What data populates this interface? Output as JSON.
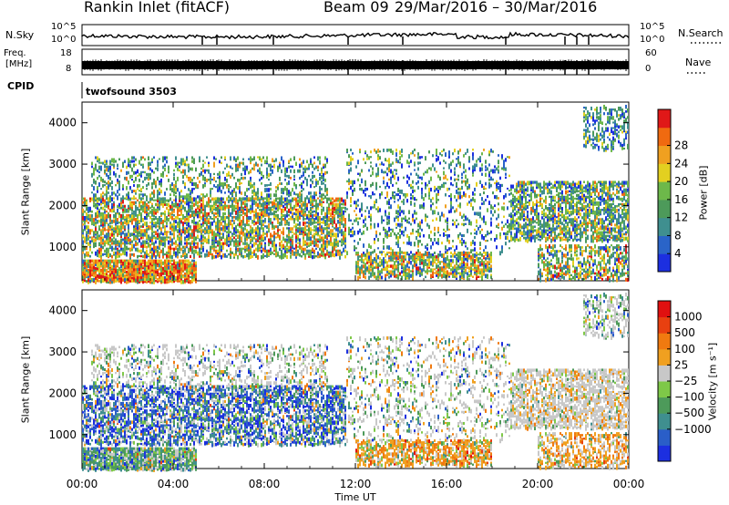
{
  "header": {
    "station": "Rankin Inlet (fitACF)",
    "beam": "Beam 09",
    "date_range": "29/Mar/2016 – 30/Mar/2016"
  },
  "strips": {
    "noise": {
      "left_label": "N.Sky",
      "right_label": "N.Search",
      "left_top_tick": "10^5",
      "left_bottom_tick": "10^0",
      "right_top_tick": "10^5",
      "right_bottom_tick": "10^0"
    },
    "freq": {
      "left_label_top": "Freq.",
      "left_label_bottom": "[MHz]",
      "right_label": "Nave",
      "left_top_tick": "18",
      "left_bottom_tick": "8",
      "right_top_tick": "60",
      "right_bottom_tick": "0"
    },
    "cpid": {
      "left_label": "CPID",
      "program": "twofsound 3503"
    }
  },
  "chart_data": [
    {
      "type": "heatmap",
      "panel": "power",
      "xlabel": "",
      "ylabel": "Slant Range [km]",
      "ylim": [
        180,
        4500
      ],
      "yticks": [
        "1000",
        "2000",
        "3000",
        "4000"
      ],
      "colorbar": {
        "label": "Power [dB]",
        "ticks": [
          "4",
          "8",
          "12",
          "16",
          "20",
          "24",
          "28"
        ],
        "colors": [
          "#1c2fe0",
          "#2a64c8",
          "#3f8f8f",
          "#4d9a5a",
          "#6db84a",
          "#e3d020",
          "#f0a020",
          "#f06a10",
          "#e01818"
        ]
      }
    },
    {
      "type": "heatmap",
      "panel": "velocity",
      "xlabel": "Time UT",
      "ylabel": "Slant Range [km]",
      "ylim": [
        180,
        4500
      ],
      "yticks": [
        "1000",
        "2000",
        "3000",
        "4000"
      ],
      "xticks": [
        "00:00",
        "04:00",
        "08:00",
        "12:00",
        "16:00",
        "20:00",
        "00:00"
      ],
      "colorbar": {
        "label": "Velocity [m s⁻¹]",
        "ticks": [
          "1000",
          "500",
          "100",
          "25",
          "−25",
          "−100",
          "−500",
          "−1000"
        ],
        "colors": [
          "#1c2fe0",
          "#2a5ec8",
          "#3f8f8f",
          "#4d9a5a",
          "#7ec848",
          "#c8c8c8",
          "#f0a020",
          "#f07a10",
          "#e84010",
          "#e01010"
        ]
      }
    }
  ]
}
